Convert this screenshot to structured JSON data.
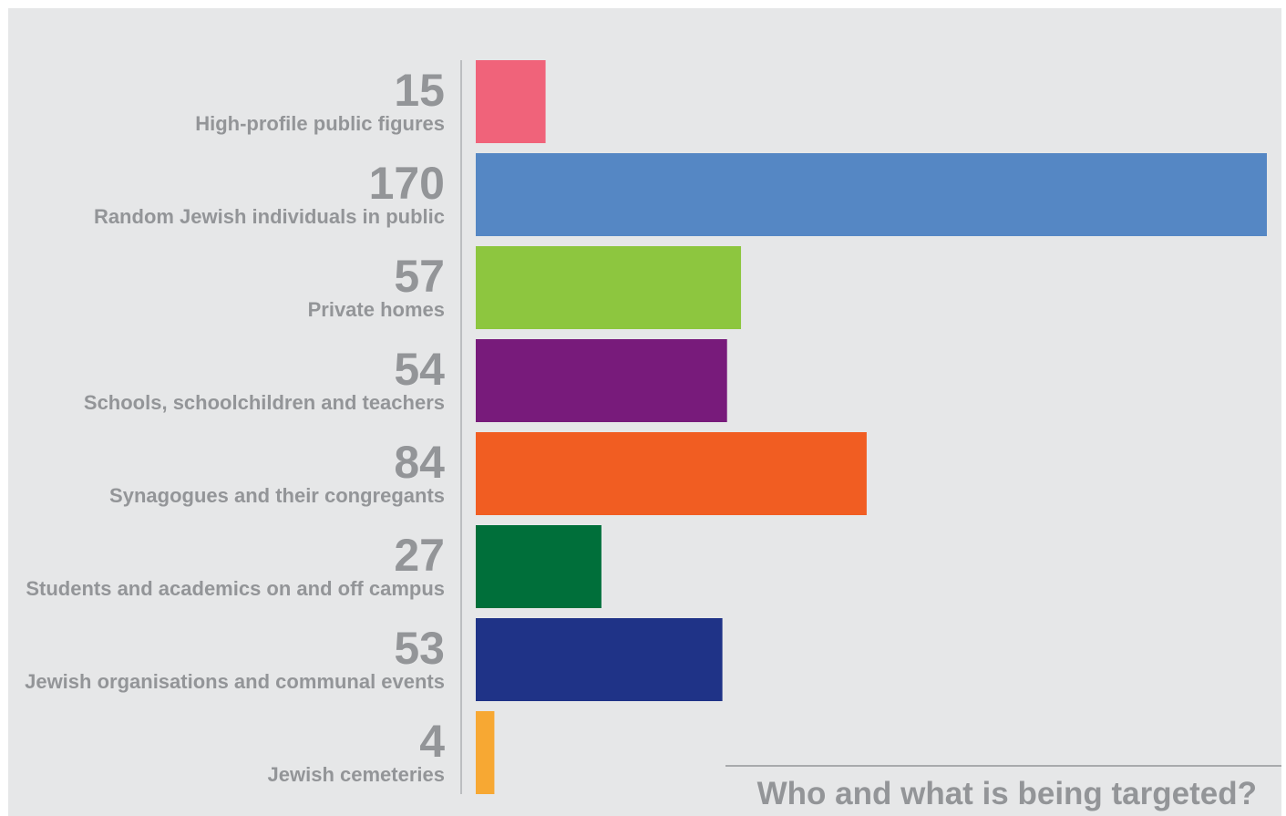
{
  "chart_data": {
    "type": "bar",
    "orientation": "horizontal",
    "title": "Who and what is being targeted?",
    "categories": [
      "High-profile public figures",
      "Random Jewish individuals in public",
      "Private homes",
      "Schools, schoolchildren and teachers",
      "Synagogues and their congregants",
      "Students and academics on and off campus",
      "Jewish organisations and communal events",
      "Jewish cemeteries"
    ],
    "values": [
      15,
      170,
      57,
      54,
      84,
      27,
      53,
      4
    ],
    "colors": [
      "#f0637a",
      "#5587c4",
      "#8dc63f",
      "#781b7b",
      "#f15d22",
      "#006f3a",
      "#1f3387",
      "#f7a833"
    ],
    "xlim": [
      0,
      170
    ],
    "grid": false,
    "legend": "none"
  }
}
